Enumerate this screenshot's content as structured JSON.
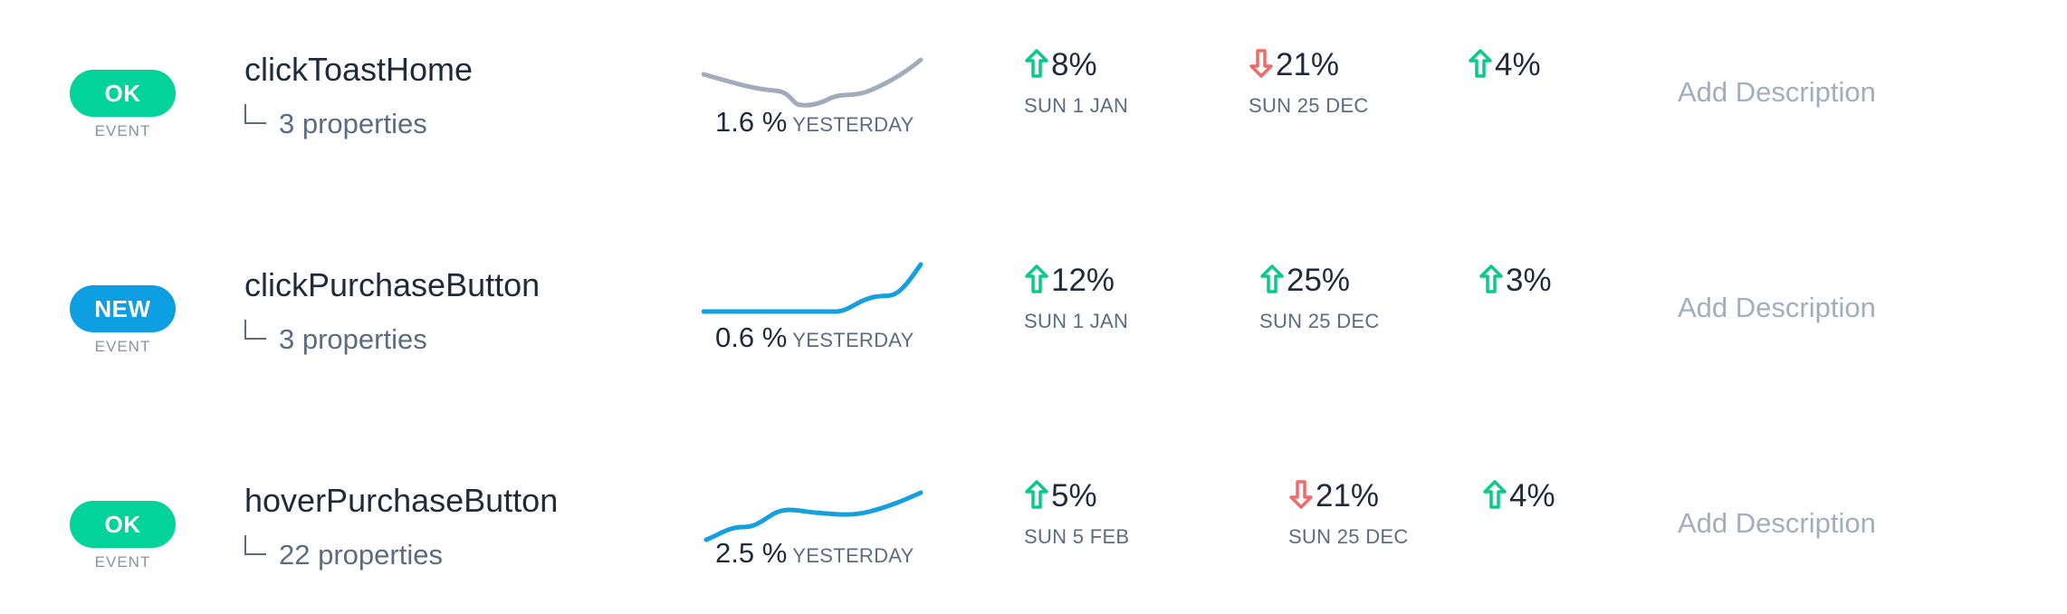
{
  "colors": {
    "ok": "#03d39a",
    "new": "#0e9fe2",
    "up": "#0bc88c",
    "down": "#f16a6a",
    "spark_gray": "#a1abbb",
    "spark_blue": "#149fdf"
  },
  "events": [
    {
      "status": "OK",
      "status_color": "#03d39a",
      "type": "EVENT",
      "name": "clickToastHome",
      "properties": "3 properties",
      "rate": "1.6 %",
      "rate_label": "YESTERDAY",
      "sparkline_color": "#a1abbb",
      "trends": [
        {
          "direction": "up",
          "pct": "8%",
          "date": "SUN 1 JAN"
        },
        {
          "direction": "down",
          "pct": "21%",
          "date": "SUN 25 DEC"
        },
        {
          "direction": "up",
          "pct": "4%",
          "date": ""
        }
      ],
      "description_placeholder": "Add Description"
    },
    {
      "status": "NEW",
      "status_color": "#0e9fe2",
      "type": "EVENT",
      "name": "clickPurchaseButton",
      "properties": "3 properties",
      "rate": "0.6 %",
      "rate_label": "YESTERDAY",
      "sparkline_color": "#149fdf",
      "trends": [
        {
          "direction": "up",
          "pct": "12%",
          "date": "SUN 1 JAN"
        },
        {
          "direction": "up",
          "pct": "25%",
          "date": "SUN 25 DEC"
        },
        {
          "direction": "up",
          "pct": "3%",
          "date": ""
        }
      ],
      "description_placeholder": "Add Description"
    },
    {
      "status": "OK",
      "status_color": "#03d39a",
      "type": "EVENT",
      "name": "hoverPurchaseButton",
      "properties": "22 properties",
      "rate": "2.5 %",
      "rate_label": "YESTERDAY",
      "sparkline_color": "#149fdf",
      "trends": [
        {
          "direction": "up",
          "pct": "5%",
          "date": "SUN 5 FEB"
        },
        {
          "direction": "down",
          "pct": "21%",
          "date": "SUN 25 DEC"
        },
        {
          "direction": "up",
          "pct": "4%",
          "date": ""
        }
      ],
      "description_placeholder": "Add Description"
    }
  ]
}
